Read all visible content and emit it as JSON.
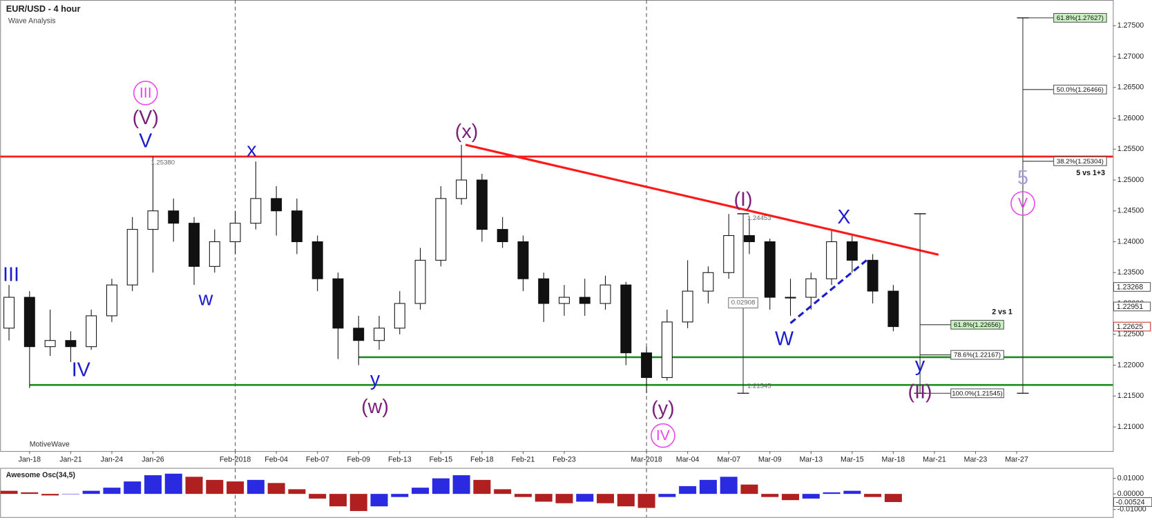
{
  "chart_data": {
    "type": "candlestick",
    "title": "EUR/USD - 4 hour",
    "subtitle": "Wave Analysis",
    "watermark": "MotiveWave",
    "xlim": [
      -1.43,
      52.68
    ],
    "ylim": [
      1.20609,
      1.27916
    ],
    "xticks": [
      {
        "value": 0,
        "label": "Jan-18"
      },
      {
        "value": 2,
        "label": "Jan-21"
      },
      {
        "value": 4,
        "label": "Jan-24"
      },
      {
        "value": 6,
        "label": "Jan-26"
      },
      {
        "value": 10,
        "label": "Feb-2018"
      },
      {
        "value": 12,
        "label": "Feb-04"
      },
      {
        "value": 14,
        "label": "Feb-07"
      },
      {
        "value": 16,
        "label": "Feb-09"
      },
      {
        "value": 18,
        "label": "Feb-13"
      },
      {
        "value": 20,
        "label": "Feb-15"
      },
      {
        "value": 22,
        "label": "Feb-18"
      },
      {
        "value": 24,
        "label": "Feb-21"
      },
      {
        "value": 26,
        "label": "Feb-23"
      },
      {
        "value": 30,
        "label": "Mar-2018"
      },
      {
        "value": 32,
        "label": "Mar-04"
      },
      {
        "value": 34,
        "label": "Mar-07"
      },
      {
        "value": 36,
        "label": "Mar-09"
      },
      {
        "value": 38,
        "label": "Mar-13"
      },
      {
        "value": 40,
        "label": "Mar-15"
      },
      {
        "value": 42,
        "label": "Mar-18"
      },
      {
        "value": 44,
        "label": "Mar-21"
      },
      {
        "value": 46,
        "label": "Mar-23"
      },
      {
        "value": 48,
        "label": "Mar-27"
      }
    ],
    "yticks": [
      {
        "value": 1.21,
        "label": "1.21000"
      },
      {
        "value": 1.215,
        "label": "1.21500"
      },
      {
        "value": 1.22,
        "label": "1.22000"
      },
      {
        "value": 1.225,
        "label": "1.22500"
      },
      {
        "value": 1.23,
        "label": "1.23000"
      },
      {
        "value": 1.235,
        "label": "1.23500"
      },
      {
        "value": 1.24,
        "label": "1.24000"
      },
      {
        "value": 1.245,
        "label": "1.24500"
      },
      {
        "value": 1.25,
        "label": "1.25000"
      },
      {
        "value": 1.255,
        "label": "1.25500"
      },
      {
        "value": 1.26,
        "label": "1.26000"
      },
      {
        "value": 1.265,
        "label": "1.26500"
      },
      {
        "value": 1.27,
        "label": "1.27000"
      },
      {
        "value": 1.275,
        "label": "1.27500"
      }
    ],
    "month_lines": [
      10,
      30
    ],
    "x": [
      -1,
      0,
      1,
      2,
      3,
      4,
      5,
      6,
      7,
      8,
      9,
      10,
      11,
      12,
      13,
      14,
      15,
      16,
      17,
      18,
      19,
      20,
      21,
      22,
      23,
      24,
      25,
      26,
      27,
      28,
      29,
      30,
      31,
      32,
      33,
      34,
      35,
      36,
      37,
      38,
      39,
      40,
      41,
      42
    ],
    "candles": [
      [
        1.226,
        1.233,
        1.224,
        1.231
      ],
      [
        1.231,
        1.232,
        1.2163,
        1.223
      ],
      [
        1.223,
        1.229,
        1.2215,
        1.224
      ],
      [
        1.224,
        1.2255,
        1.2205,
        1.223
      ],
      [
        1.223,
        1.229,
        1.2225,
        1.228
      ],
      [
        1.228,
        1.234,
        1.227,
        1.233
      ],
      [
        1.233,
        1.244,
        1.232,
        1.242
      ],
      [
        1.242,
        1.2538,
        1.235,
        1.245
      ],
      [
        1.245,
        1.247,
        1.24,
        1.243
      ],
      [
        1.243,
        1.244,
        1.233,
        1.236
      ],
      [
        1.236,
        1.242,
        1.235,
        1.24
      ],
      [
        1.24,
        1.245,
        1.238,
        1.243
      ],
      [
        1.243,
        1.253,
        1.242,
        1.247
      ],
      [
        1.247,
        1.249,
        1.241,
        1.245
      ],
      [
        1.245,
        1.247,
        1.238,
        1.24
      ],
      [
        1.24,
        1.241,
        1.232,
        1.234
      ],
      [
        1.234,
        1.235,
        1.221,
        1.226
      ],
      [
        1.226,
        1.228,
        1.22,
        1.224
      ],
      [
        1.224,
        1.228,
        1.2225,
        1.226
      ],
      [
        1.226,
        1.232,
        1.225,
        1.23
      ],
      [
        1.23,
        1.239,
        1.229,
        1.237
      ],
      [
        1.237,
        1.249,
        1.236,
        1.247
      ],
      [
        1.247,
        1.2557,
        1.246,
        1.25
      ],
      [
        1.25,
        1.251,
        1.24,
        1.242
      ],
      [
        1.242,
        1.244,
        1.239,
        1.24
      ],
      [
        1.24,
        1.241,
        1.232,
        1.234
      ],
      [
        1.234,
        1.235,
        1.227,
        1.23
      ],
      [
        1.23,
        1.233,
        1.228,
        1.231
      ],
      [
        1.231,
        1.234,
        1.228,
        1.23
      ],
      [
        1.23,
        1.2345,
        1.229,
        1.233
      ],
      [
        1.233,
        1.2335,
        1.22,
        1.222
      ],
      [
        1.222,
        1.223,
        1.2155,
        1.218
      ],
      [
        1.218,
        1.229,
        1.2175,
        1.227
      ],
      [
        1.227,
        1.237,
        1.226,
        1.232
      ],
      [
        1.232,
        1.236,
        1.23,
        1.235
      ],
      [
        1.235,
        1.2445,
        1.234,
        1.241
      ],
      [
        1.241,
        1.244,
        1.238,
        1.24
      ],
      [
        1.24,
        1.2405,
        1.229,
        1.231
      ],
      [
        1.231,
        1.234,
        1.228,
        1.231
      ],
      [
        1.231,
        1.235,
        1.229,
        1.234
      ],
      [
        1.234,
        1.242,
        1.233,
        1.24
      ],
      [
        1.24,
        1.241,
        1.235,
        1.237
      ],
      [
        1.237,
        1.238,
        1.23,
        1.232
      ],
      [
        1.232,
        1.233,
        1.2255,
        1.22625
      ]
    ],
    "up_color": "#ffffff",
    "down_color": "#111111",
    "price_tags": [
      1.23268,
      1.22951,
      1.22625
    ],
    "hlines": [
      {
        "value": 1.2538,
        "from": -1.43,
        "color": "#ff1a1a"
      },
      {
        "value": 1.2213,
        "from": 16,
        "color": "#1a8c1a"
      },
      {
        "value": 1.2168,
        "from": 0,
        "color": "#1a8c1a"
      }
    ],
    "trendlines": [
      {
        "points": [
          [
            21.2,
            1.2557
          ],
          [
            44.2,
            1.2379
          ]
        ],
        "color": "#ff1a1a",
        "dashed": false
      },
      {
        "points": [
          [
            37,
            1.2268
          ],
          [
            40.7,
            1.237
          ]
        ],
        "color": "#1c1ccf",
        "dashed": true
      }
    ],
    "arrows": [
      {
        "x": 48.3,
        "from": 1.21545,
        "to": 1.27627
      },
      {
        "x": 43.3,
        "from": 1.21545,
        "to": 1.24453
      },
      {
        "x": 34.7,
        "from": 1.21545,
        "to": 1.24453
      }
    ],
    "fibs": [
      {
        "start": 48.3,
        "value": 1.27627,
        "label": "61.8%(1.27627)",
        "color": "#c8f0c0"
      },
      {
        "start": 48.3,
        "value": 1.26466,
        "label": "50.0%(1.26466)",
        "color": "#ffffff"
      },
      {
        "start": 48.3,
        "value": 1.25304,
        "label": "38.2%(1.25304)",
        "color": "#ffffff"
      },
      {
        "start": 43.3,
        "value": 1.22656,
        "label": "61.8%(1.22656)",
        "color": "#c8f0c0"
      },
      {
        "start": 43.3,
        "value": 1.22167,
        "label": "78.6%(1.22167)",
        "color": "#ffffff"
      },
      {
        "start": 43.3,
        "value": 1.21545,
        "label": "100.0%(1.21545)",
        "color": "#ffffff"
      }
    ],
    "notes": [
      {
        "text": "1.25380",
        "x": 5.9,
        "y": 1.2528
      },
      {
        "text": "1.24453",
        "x": 34.9,
        "y": 1.2438
      },
      {
        "text": "1.21545",
        "x": 34.9,
        "y": 1.2166
      },
      {
        "text": "0.02908",
        "x": 34.7,
        "y": 1.2301,
        "boxed": true
      },
      {
        "text": "5 vs 1+3",
        "x": 50.9,
        "y": 1.2511,
        "bold": true
      },
      {
        "text": "2 vs 1",
        "x": 46.8,
        "y": 1.2286,
        "bold": true
      }
    ],
    "waves": [
      {
        "text": "III",
        "x": -0.9,
        "y": 1.2346,
        "color": "#1c1ccf"
      },
      {
        "text": "IV",
        "x": 2.5,
        "y": 1.2192,
        "color": "#1c1ccf"
      },
      {
        "text": "III",
        "x": 5.64,
        "y": 1.2641,
        "color": "#ee44ee",
        "circle": true
      },
      {
        "text": "(V)",
        "x": 5.64,
        "y": 1.26,
        "color": "#7a1f7a"
      },
      {
        "text": "V",
        "x": 5.64,
        "y": 1.2563,
        "color": "#1c1ccf"
      },
      {
        "text": "w",
        "x": 8.57,
        "y": 1.2307,
        "color": "#1c1ccf"
      },
      {
        "text": "x",
        "x": 10.8,
        "y": 1.2548,
        "color": "#1c1ccf"
      },
      {
        "text": "y",
        "x": 16.8,
        "y": 1.2177,
        "color": "#1c1ccf"
      },
      {
        "text": "(w)",
        "x": 16.8,
        "y": 1.2132,
        "color": "#7a1f7a"
      },
      {
        "text": "(x)",
        "x": 21.25,
        "y": 1.2578,
        "color": "#7a1f7a"
      },
      {
        "text": "(y)",
        "x": 30.8,
        "y": 1.2129,
        "color": "#7a1f7a"
      },
      {
        "text": "IV",
        "x": 30.8,
        "y": 1.2086,
        "color": "#ee44ee",
        "circle": true
      },
      {
        "text": "(I)",
        "x": 34.7,
        "y": 1.2468,
        "color": "#7a1f7a"
      },
      {
        "text": "X",
        "x": 39.6,
        "y": 1.2439,
        "color": "#1c1ccf"
      },
      {
        "text": "W",
        "x": 36.7,
        "y": 1.2242,
        "color": "#1c1ccf"
      },
      {
        "text": "y",
        "x": 43.3,
        "y": 1.22,
        "color": "#1c1ccf"
      },
      {
        "text": "(II)",
        "x": 43.3,
        "y": 1.2156,
        "color": "#7a1f7a"
      },
      {
        "text": "5",
        "x": 48.3,
        "y": 1.2503,
        "color": "#a59ee8"
      },
      {
        "text": "V",
        "x": 48.3,
        "y": 1.2462,
        "color": "#ee44ee",
        "circle": true
      }
    ],
    "osc": {
      "title": "Awesome Osc(34,5)",
      "ylim": [
        -0.0149,
        0.0167
      ],
      "yticks": [
        {
          "value": 0.01,
          "label": "0.01000"
        },
        {
          "value": 0,
          "label": "0.00000"
        },
        {
          "value": -0.01,
          "label": "-0.01000"
        }
      ],
      "rise_color": "#2a2ae0",
      "fall_color": "#b02020",
      "values": [
        0.002,
        0.001,
        -0.001,
        0,
        0.002,
        0.004,
        0.008,
        0.012,
        0.013,
        0.011,
        0.009,
        0.008,
        0.009,
        0.007,
        0.003,
        -0.003,
        -0.008,
        -0.011,
        -0.008,
        -0.002,
        0.004,
        0.01,
        0.012,
        0.009,
        0.003,
        -0.002,
        -0.005,
        -0.006,
        -0.005,
        -0.006,
        -0.008,
        -0.009,
        -0.002,
        0.005,
        0.009,
        0.011,
        0.006,
        -0.002,
        -0.004,
        -0.003,
        0.001,
        0.002,
        -0.002,
        -0.00524
      ]
    }
  }
}
